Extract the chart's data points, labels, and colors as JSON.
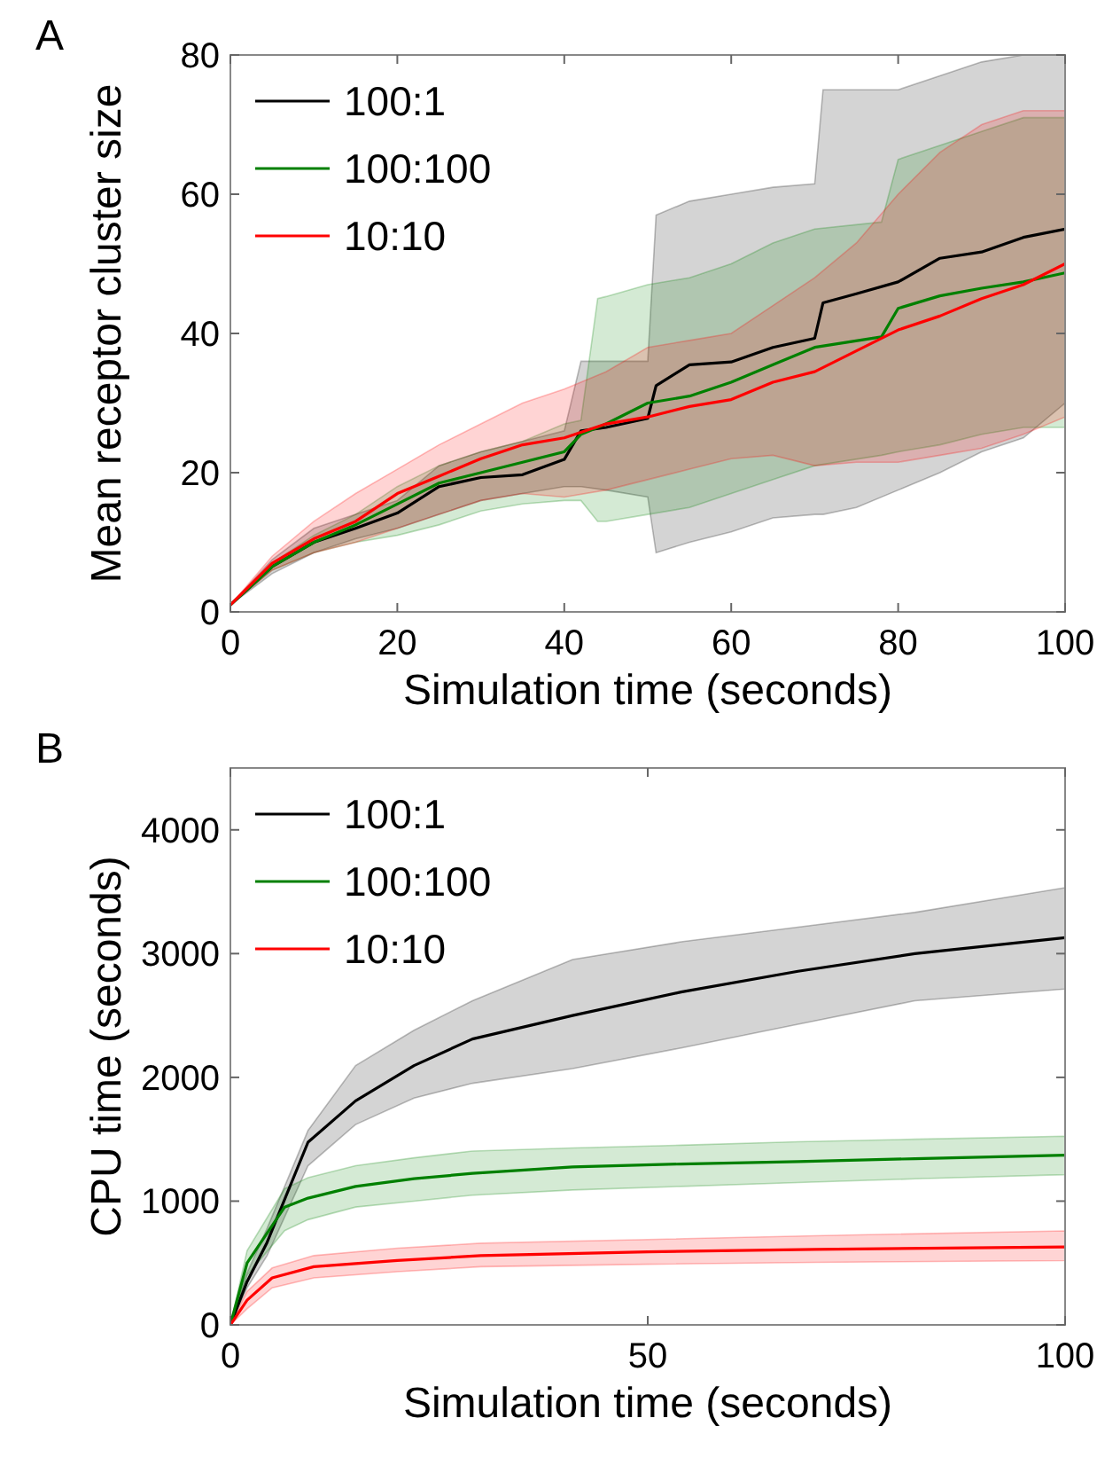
{
  "chart_data": [
    {
      "type": "line",
      "title": "A",
      "xlabel": "Simulation time (seconds)",
      "ylabel": "Mean receptor cluster size",
      "xlim": [
        0,
        100
      ],
      "ylim": [
        0,
        80
      ],
      "xticks": [
        0,
        20,
        40,
        60,
        80,
        100
      ],
      "yticks": [
        0,
        20,
        40,
        60,
        80
      ],
      "legend": "top left",
      "grid": false,
      "series": [
        {
          "name": "100:1",
          "color": "#000000",
          "x": [
            0,
            5,
            10,
            15,
            20,
            25,
            30,
            35,
            40,
            42,
            45,
            50,
            51,
            55,
            60,
            65,
            70,
            71,
            75,
            80,
            85,
            90,
            95,
            100
          ],
          "values": [
            1,
            6.5,
            10,
            12,
            14.2,
            18,
            19.3,
            19.7,
            21.9,
            26,
            26.5,
            27.8,
            32.5,
            35.5,
            35.9,
            38,
            39.3,
            44.4,
            45.7,
            47.4,
            50.8,
            51.7,
            53.8,
            55
          ],
          "lower": [
            1,
            5.5,
            8.5,
            10.5,
            12,
            14,
            16,
            17,
            18,
            18,
            17.5,
            16.5,
            8.5,
            10,
            11.5,
            13.5,
            14,
            14,
            15,
            17.5,
            20,
            23,
            25,
            30
          ],
          "upper": [
            1,
            7.5,
            12,
            14,
            16,
            21,
            23,
            24.5,
            26,
            36,
            36,
            36,
            57,
            59,
            60,
            61,
            61.5,
            75,
            75,
            75,
            77,
            79,
            80,
            80
          ]
        },
        {
          "name": "100:100",
          "color": "#008000",
          "x": [
            0,
            5,
            10,
            15,
            20,
            25,
            30,
            35,
            40,
            42,
            44,
            45,
            50,
            55,
            60,
            65,
            70,
            78,
            80,
            85,
            90,
            95,
            100
          ],
          "values": [
            1,
            6.5,
            10,
            12.5,
            15.5,
            18.5,
            20,
            21.5,
            23,
            25.5,
            26.5,
            27,
            30,
            31,
            33,
            35.5,
            38,
            39.5,
            43.6,
            45.4,
            46.5,
            47.4,
            48.7
          ],
          "lower": [
            1,
            6,
            8.5,
            10,
            11,
            12.5,
            14.5,
            15.5,
            16,
            16,
            13,
            13,
            14,
            15,
            17,
            19,
            21,
            22.5,
            23,
            24,
            25.5,
            26.5,
            26.5
          ],
          "upper": [
            1,
            7,
            11,
            14,
            18,
            21,
            23,
            24.5,
            27,
            27.5,
            45,
            45.3,
            47,
            48,
            50,
            53,
            55,
            56,
            65,
            67,
            69,
            71,
            71
          ]
        },
        {
          "name": "10:10",
          "color": "#ff0000",
          "x": [
            0,
            5,
            10,
            15,
            20,
            25,
            30,
            35,
            40,
            45,
            50,
            55,
            60,
            65,
            70,
            75,
            80,
            85,
            90,
            95,
            100
          ],
          "values": [
            1,
            7,
            10.5,
            13,
            17,
            19.5,
            22,
            24,
            25,
            27,
            28,
            29.5,
            30.5,
            33,
            34.5,
            37.5,
            40.5,
            42.5,
            45,
            47,
            50
          ],
          "lower": [
            1,
            6,
            8.5,
            10,
            12,
            14,
            16,
            17,
            16.5,
            17.5,
            19,
            20.5,
            22,
            22.5,
            21,
            21.5,
            21.5,
            22.5,
            23.5,
            25.5,
            28
          ],
          "upper": [
            1,
            8,
            13,
            17,
            20.5,
            24,
            27,
            30,
            32,
            34.5,
            38,
            39,
            40,
            44,
            48,
            53,
            60,
            66,
            70,
            72,
            72
          ]
        }
      ]
    },
    {
      "type": "line",
      "title": "B",
      "xlabel": "Simulation time (seconds)",
      "ylabel": "CPU time (seconds)",
      "xlim": [
        0,
        100
      ],
      "ylim": [
        0,
        4500
      ],
      "xticks": [
        0,
        50,
        100
      ],
      "yticks": [
        0,
        1000,
        2000,
        3000,
        4000
      ],
      "legend": "top left",
      "grid": false,
      "series": [
        {
          "name": "100:1",
          "color": "#000000",
          "x": [
            0,
            2,
            4.4,
            9.3,
            15,
            22,
            29,
            41,
            54,
            68,
            82,
            100
          ],
          "values": [
            0,
            350,
            667,
            1476,
            1810,
            2095,
            2310,
            2500,
            2690,
            2857,
            3000,
            3129
          ],
          "lower": [
            0,
            300,
            560,
            1286,
            1619,
            1833,
            1952,
            2071,
            2238,
            2429,
            2619,
            2714
          ],
          "upper": [
            0,
            420,
            780,
            1571,
            2095,
            2381,
            2619,
            2952,
            3095,
            3214,
            3333,
            3533
          ]
        },
        {
          "name": "100:100",
          "color": "#008000",
          "x": [
            0,
            2,
            6.5,
            9.3,
            15,
            22,
            29,
            41,
            54,
            68,
            82,
            100
          ],
          "values": [
            0,
            500,
            952,
            1024,
            1119,
            1181,
            1224,
            1276,
            1300,
            1319,
            1343,
            1371
          ],
          "lower": [
            0,
            400,
            762,
            850,
            952,
            1000,
            1048,
            1090,
            1119,
            1150,
            1180,
            1214
          ],
          "upper": [
            0,
            600,
            1100,
            1190,
            1286,
            1350,
            1405,
            1430,
            1452,
            1480,
            1500,
            1524
          ]
        },
        {
          "name": "10:10",
          "color": "#ff0000",
          "x": [
            0,
            2,
            5,
            10,
            20,
            30,
            50,
            70,
            100
          ],
          "values": [
            0,
            200,
            380,
            470,
            520,
            560,
            590,
            610,
            630
          ],
          "lower": [
            0,
            130,
            300,
            380,
            430,
            470,
            490,
            505,
            520
          ],
          "upper": [
            0,
            270,
            460,
            560,
            620,
            660,
            690,
            720,
            760
          ]
        }
      ]
    }
  ]
}
